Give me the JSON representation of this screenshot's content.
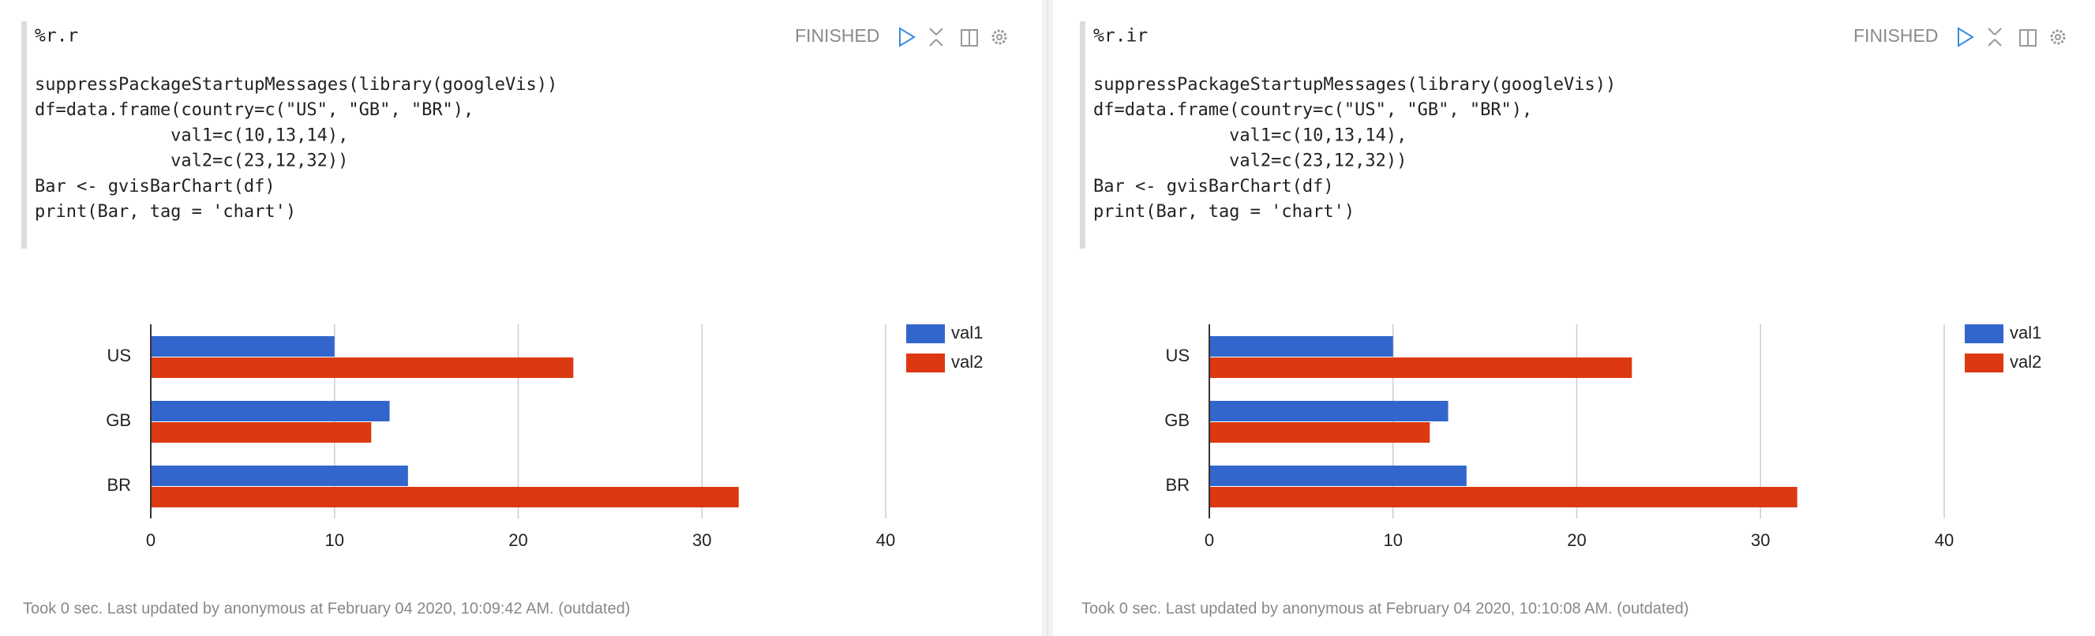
{
  "paragraphs": [
    {
      "title": "%r.r",
      "status": "FINISHED",
      "code": [
        "suppressPackageStartupMessages(library(googleVis))",
        "df=data.frame(country=c(\"US\", \"GB\", \"BR\"),",
        "             val1=c(10,13,14),",
        "             val2=c(23,12,32))",
        "Bar <- gvisBarChart(df)",
        "print(Bar, tag = 'chart')"
      ],
      "footer": "Took 0 sec. Last updated by anonymous at February 04 2020, 10:09:42 AM. (outdated)"
    },
    {
      "title": "%r.ir",
      "status": "FINISHED",
      "code": [
        "suppressPackageStartupMessages(library(googleVis))",
        "df=data.frame(country=c(\"US\", \"GB\", \"BR\"),",
        "             val1=c(10,13,14),",
        "             val2=c(23,12,32))",
        "Bar <- gvisBarChart(df)",
        "print(Bar, tag = 'chart')"
      ],
      "footer": "Took 0 sec. Last updated by anonymous at February 04 2020, 10:10:08 AM. (outdated)"
    }
  ],
  "chart_data": [
    {
      "type": "bar",
      "orientation": "horizontal",
      "categories": [
        "US",
        "GB",
        "BR"
      ],
      "series": [
        {
          "name": "val1",
          "color": "#3366cc",
          "values": [
            10,
            13,
            14
          ]
        },
        {
          "name": "val2",
          "color": "#dc3912",
          "values": [
            23,
            12,
            32
          ]
        }
      ],
      "xlim": [
        0,
        40
      ],
      "xticks": [
        0,
        10,
        20,
        30,
        40
      ],
      "grid": true,
      "legend": "right"
    },
    {
      "type": "bar",
      "orientation": "horizontal",
      "categories": [
        "US",
        "GB",
        "BR"
      ],
      "series": [
        {
          "name": "val1",
          "color": "#3366cc",
          "values": [
            10,
            13,
            14
          ]
        },
        {
          "name": "val2",
          "color": "#dc3912",
          "values": [
            23,
            12,
            32
          ]
        }
      ],
      "xlim": [
        0,
        40
      ],
      "xticks": [
        0,
        10,
        20,
        30,
        40
      ],
      "grid": true,
      "legend": "right"
    }
  ]
}
